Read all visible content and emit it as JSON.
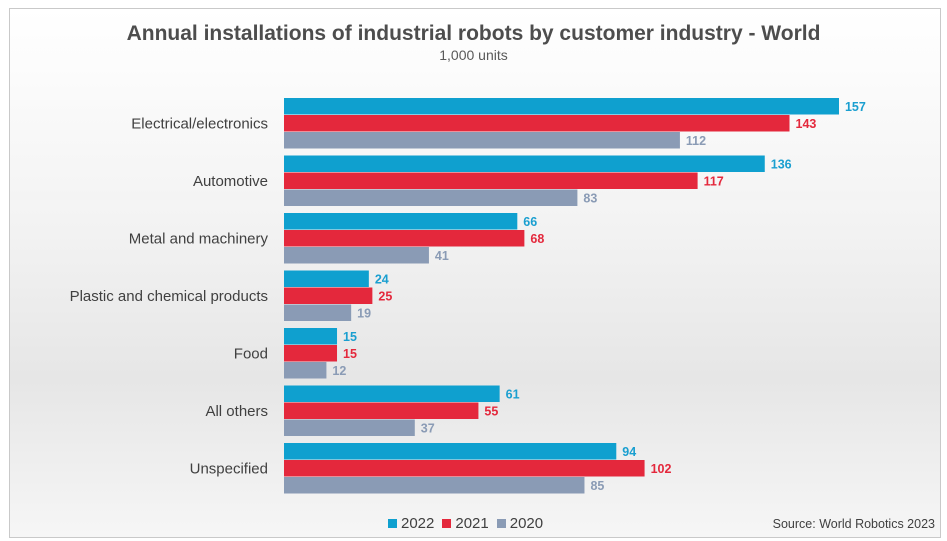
{
  "title": "Annual installations of industrial robots by customer industry - World",
  "subtitle": "1,000 units",
  "source": "Source: World Robotics 2023",
  "chart_data": {
    "type": "bar",
    "orientation": "horizontal",
    "categories": [
      "Electrical/electronics",
      "Automotive",
      "Metal and machinery",
      "Plastic and chemical products",
      "Food",
      "All others",
      "Unspecified"
    ],
    "series": [
      {
        "name": "2022",
        "color": "#0fa0cf",
        "values": [
          157,
          136,
          66,
          24,
          15,
          61,
          94
        ]
      },
      {
        "name": "2021",
        "color": "#e4283c",
        "values": [
          143,
          117,
          68,
          25,
          15,
          55,
          102
        ]
      },
      {
        "name": "2020",
        "color": "#8a9bb5",
        "values": [
          112,
          83,
          41,
          19,
          12,
          37,
          85
        ]
      }
    ],
    "xlim": [
      0,
      160
    ],
    "grid": false,
    "legend_position": "bottom-center"
  }
}
